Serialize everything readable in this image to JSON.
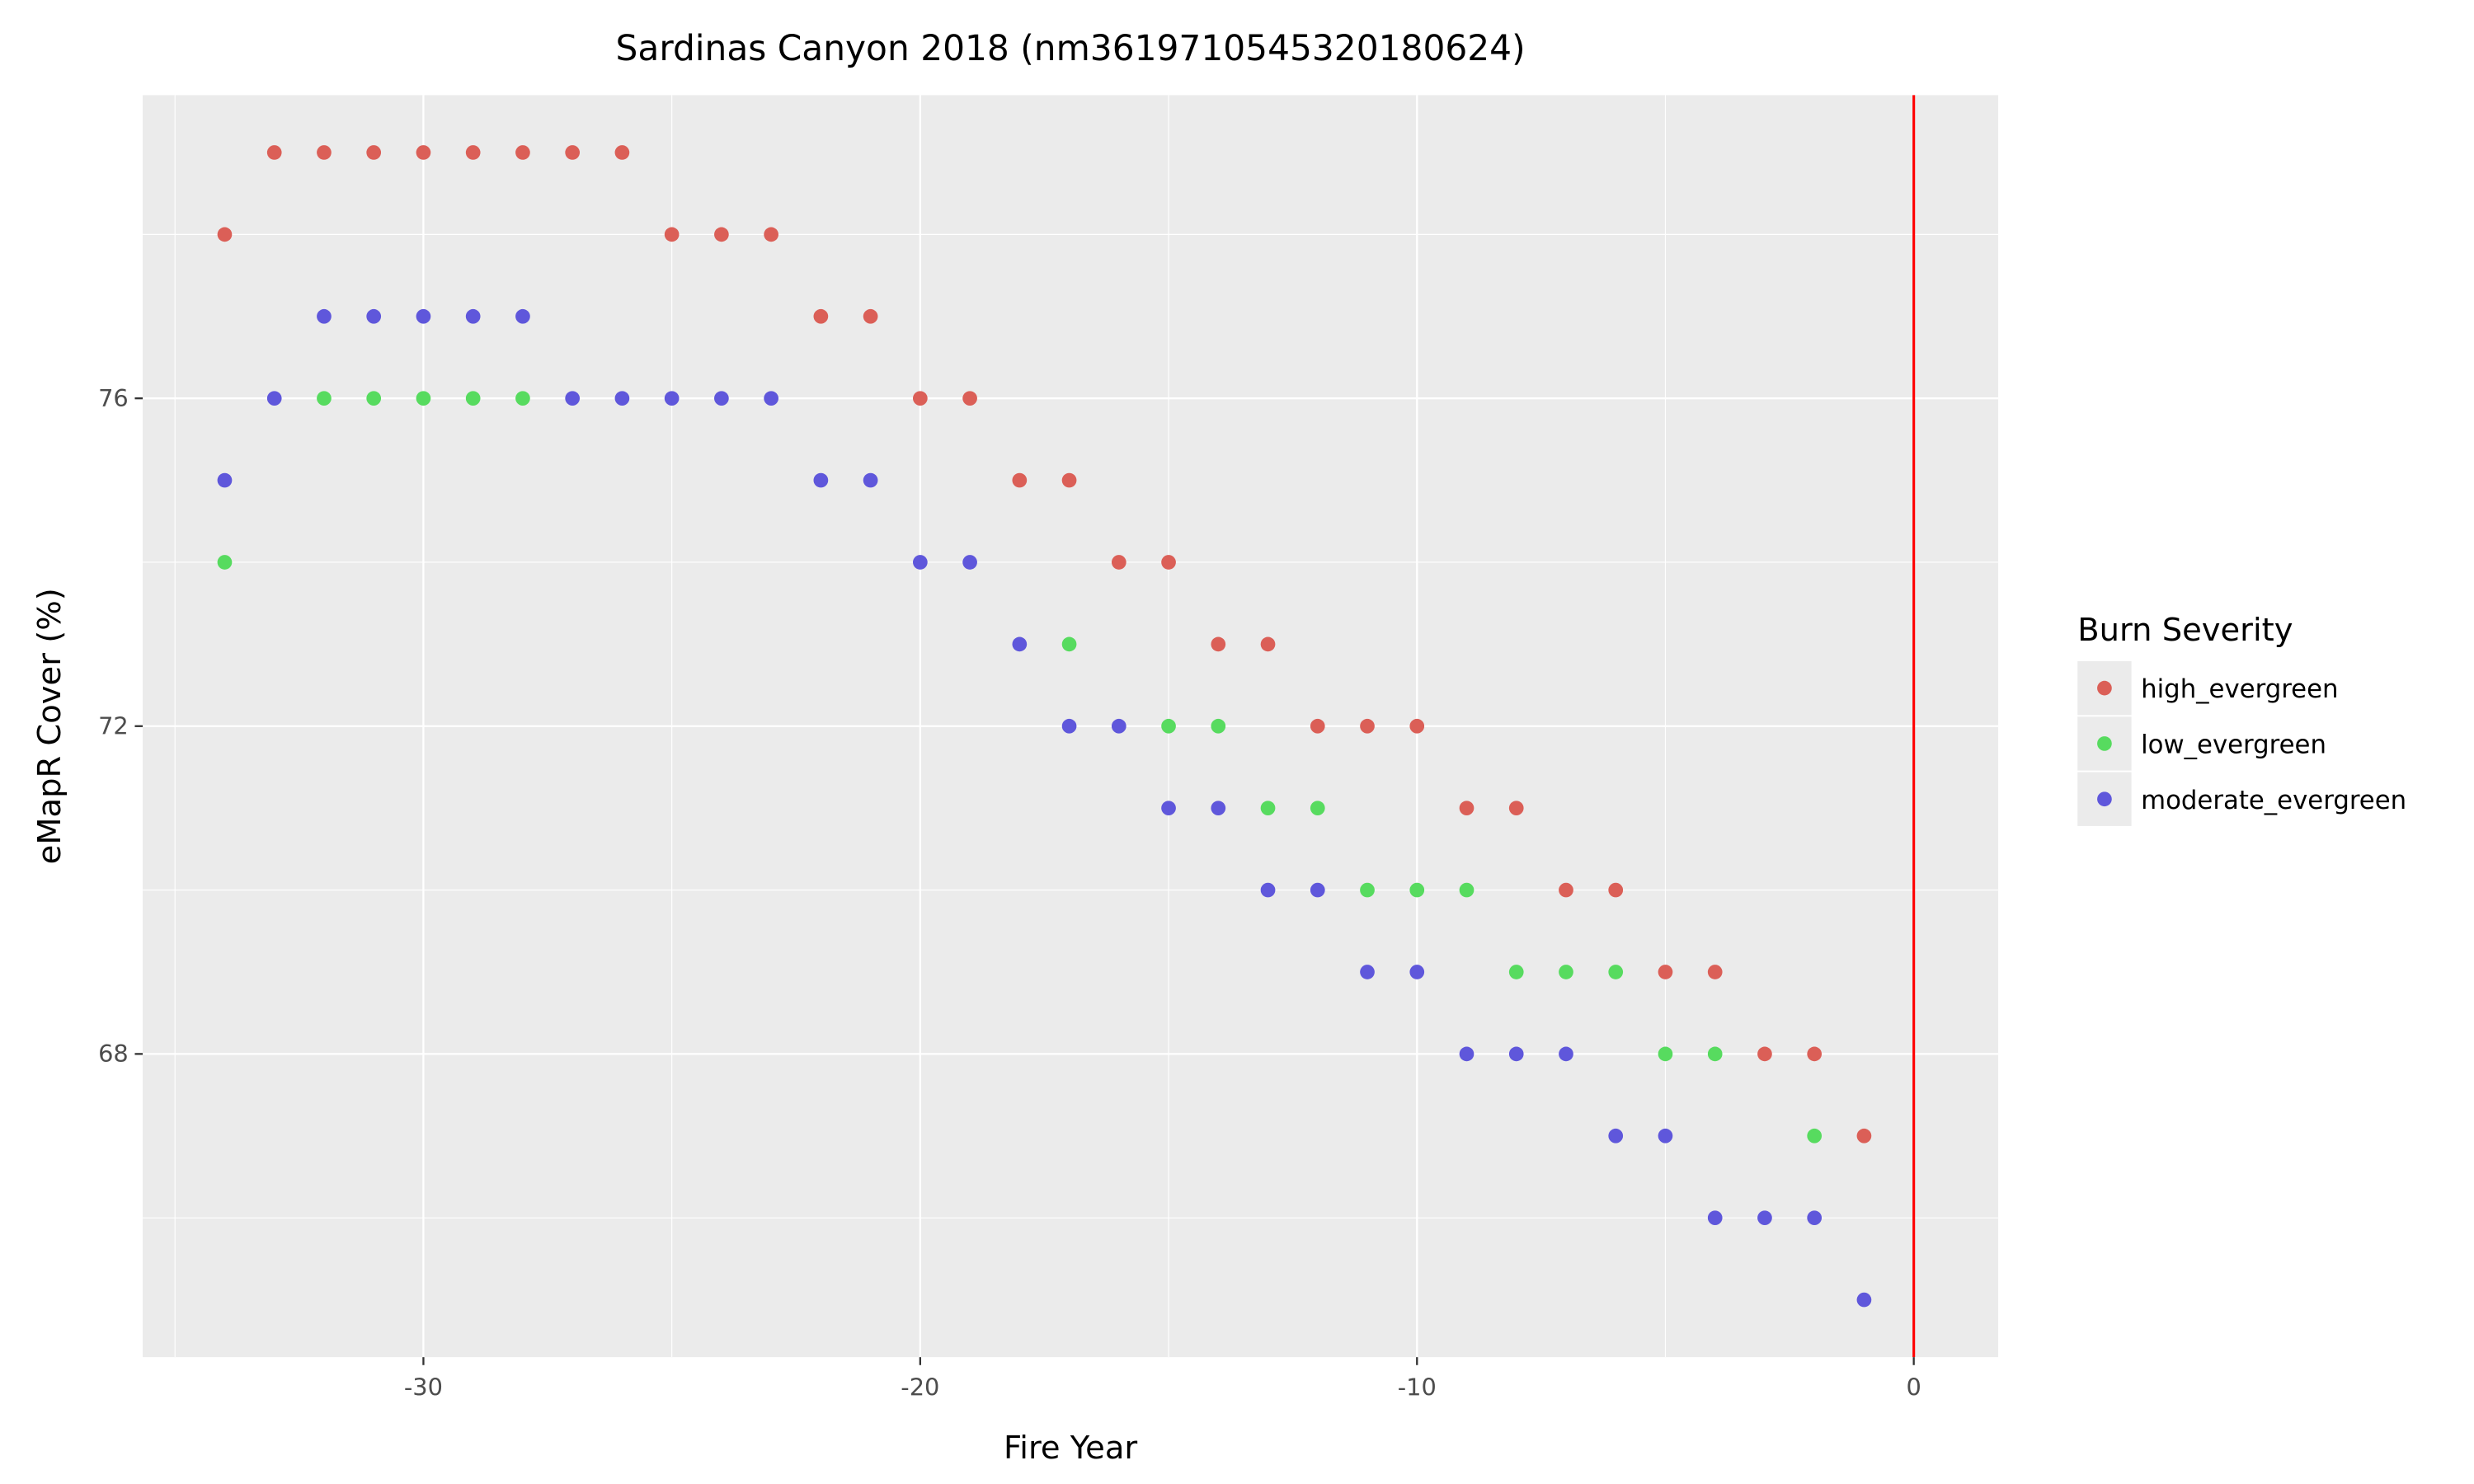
{
  "chart_data": {
    "type": "scatter",
    "title": "Sardinas Canyon 2018 (nm3619710545320180624)",
    "xlabel": "Fire Year",
    "ylabel": "eMapR Cover (%)",
    "xlim": [
      -35.65,
      1.7
    ],
    "ylim": [
      64.3,
      79.7
    ],
    "x_ticks": [
      -30,
      -20,
      -10,
      0
    ],
    "x_tick_labels": [
      "-30",
      "-20",
      "-10",
      "0"
    ],
    "x_minor_grid": [
      -35,
      -25,
      -15,
      -5
    ],
    "y_ticks": [
      68,
      72,
      76
    ],
    "y_tick_labels": [
      "68",
      "72",
      "76"
    ],
    "y_minor_grid": [
      66,
      70,
      74,
      78
    ],
    "grid": true,
    "background": "#ebebeb",
    "vline": {
      "x": 0,
      "color": "#ff0000"
    },
    "legend": {
      "title": "Burn Severity",
      "position": "right"
    },
    "series": [
      {
        "name": "high_evergreen",
        "color": "#db5f57",
        "x": [
          -34,
          -33,
          -32,
          -31,
          -30,
          -29,
          -28,
          -27,
          -26,
          -25,
          -24,
          -23,
          -22,
          -21,
          -20,
          -19,
          -18,
          -17,
          -16,
          -15,
          -14,
          -13,
          -12,
          -11,
          -10,
          -9,
          -8,
          -7,
          -6,
          -5,
          -4,
          -3,
          -2,
          -1
        ],
        "y": [
          78,
          79,
          79,
          79,
          79,
          79,
          79,
          79,
          79,
          78,
          78,
          78,
          77,
          77,
          76,
          76,
          75,
          75,
          74,
          74,
          73,
          73,
          72,
          72,
          72,
          71,
          71,
          70,
          70,
          69,
          69,
          68,
          68,
          67
        ]
      },
      {
        "name": "low_evergreen",
        "color": "#57db5f",
        "x": [
          -34,
          -32,
          -31,
          -30,
          -29,
          -28,
          -17,
          -15,
          -14,
          -13,
          -12,
          -11,
          -10,
          -9,
          -8,
          -7,
          -6,
          -5,
          -4,
          -2
        ],
        "y": [
          74,
          76,
          76,
          76,
          76,
          76,
          73,
          72,
          72,
          71,
          71,
          70,
          70,
          70,
          69,
          69,
          69,
          68,
          68,
          67
        ]
      },
      {
        "name": "moderate_evergreen",
        "color": "#5f57db",
        "x": [
          -34,
          -33,
          -32,
          -31,
          -30,
          -29,
          -28,
          -27,
          -26,
          -25,
          -24,
          -23,
          -22,
          -21,
          -20,
          -19,
          -18,
          -17,
          -16,
          -15,
          -14,
          -13,
          -12,
          -11,
          -10,
          -9,
          -8,
          -7,
          -6,
          -5,
          -4,
          -3,
          -2,
          -1
        ],
        "y": [
          75,
          76,
          77,
          77,
          77,
          77,
          77,
          76,
          76,
          76,
          76,
          76,
          75,
          75,
          74,
          74,
          73,
          72,
          72,
          71,
          71,
          70,
          70,
          69,
          69,
          68,
          68,
          68,
          67,
          67,
          66,
          66,
          66,
          65
        ]
      }
    ]
  }
}
